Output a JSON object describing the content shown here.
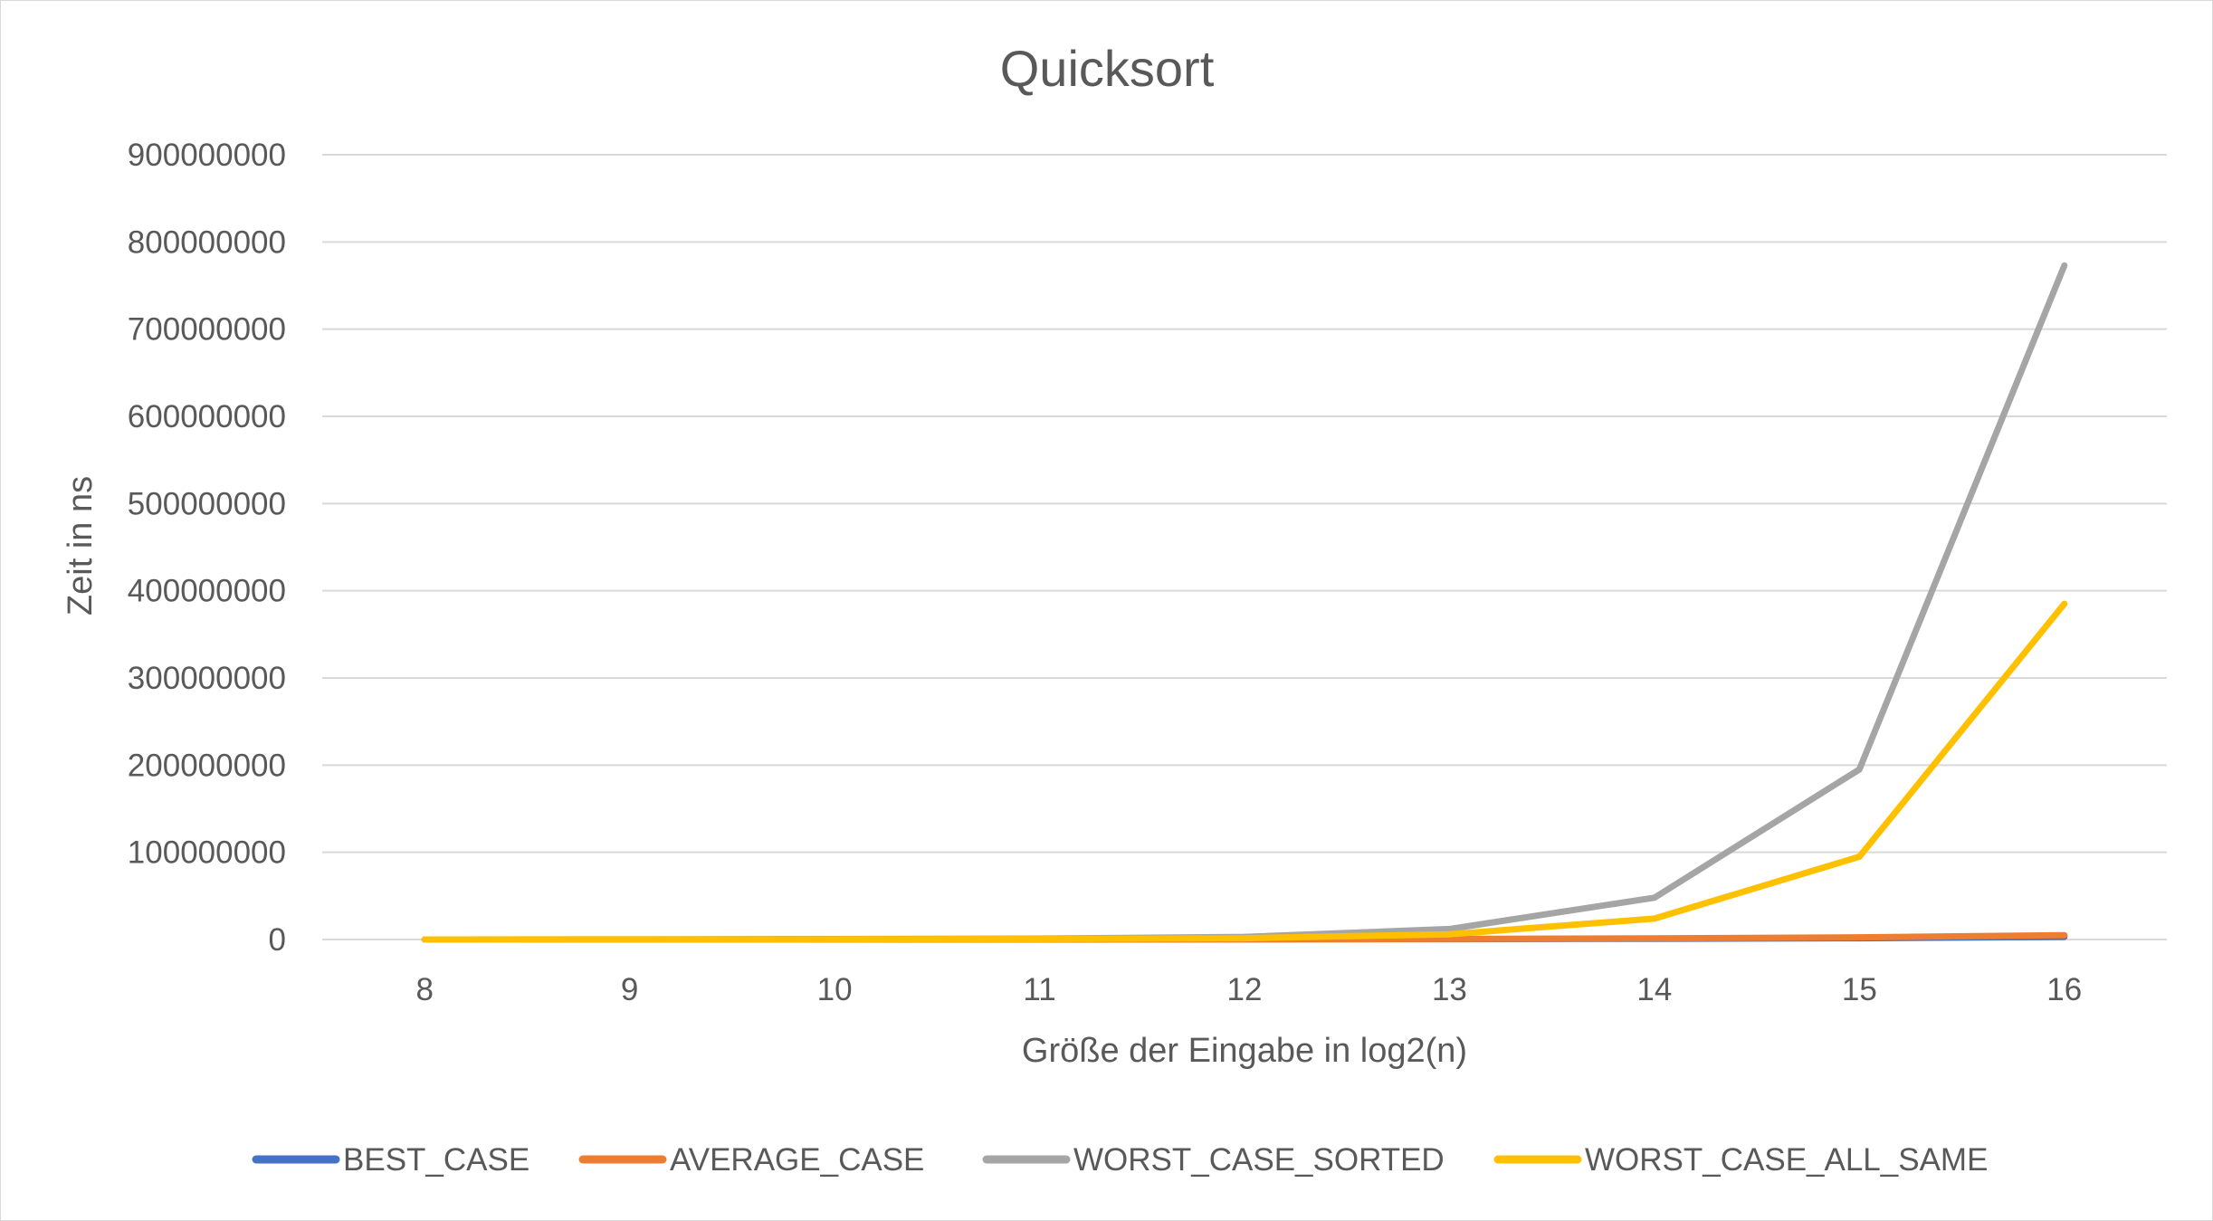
{
  "chart_data": {
    "type": "line",
    "title": "Quicksort",
    "xlabel": "Größe der Eingabe in log2(n)",
    "ylabel": "Zeit in ns",
    "categories": [
      "8",
      "9",
      "10",
      "11",
      "12",
      "13",
      "14",
      "15",
      "16"
    ],
    "ylim": [
      0,
      900000000
    ],
    "yticks": [
      "0",
      "100000000",
      "200000000",
      "300000000",
      "400000000",
      "500000000",
      "600000000",
      "700000000",
      "800000000",
      "900000000"
    ],
    "grid": true,
    "legend_position": "bottom",
    "series": [
      {
        "name": "BEST_CASE",
        "color": "#4472C4",
        "values": [
          10000,
          20000,
          50000,
          100000,
          200000,
          400000,
          800000,
          1500000,
          3000000
        ]
      },
      {
        "name": "AVERAGE_CASE",
        "color": "#ED7D31",
        "values": [
          15000,
          30000,
          70000,
          150000,
          300000,
          600000,
          1200000,
          2500000,
          5000000
        ]
      },
      {
        "name": "WORST_CASE_SORTED",
        "color": "#A5A5A5",
        "values": [
          50000,
          150000,
          500000,
          1000000,
          3000000,
          12000000,
          48000000,
          195000000,
          773000000
        ]
      },
      {
        "name": "WORST_CASE_ALL_SAME",
        "color": "#FFC000",
        "values": [
          30000,
          80000,
          250000,
          500000,
          1500000,
          6000000,
          24000000,
          95000000,
          385000000
        ]
      }
    ]
  }
}
